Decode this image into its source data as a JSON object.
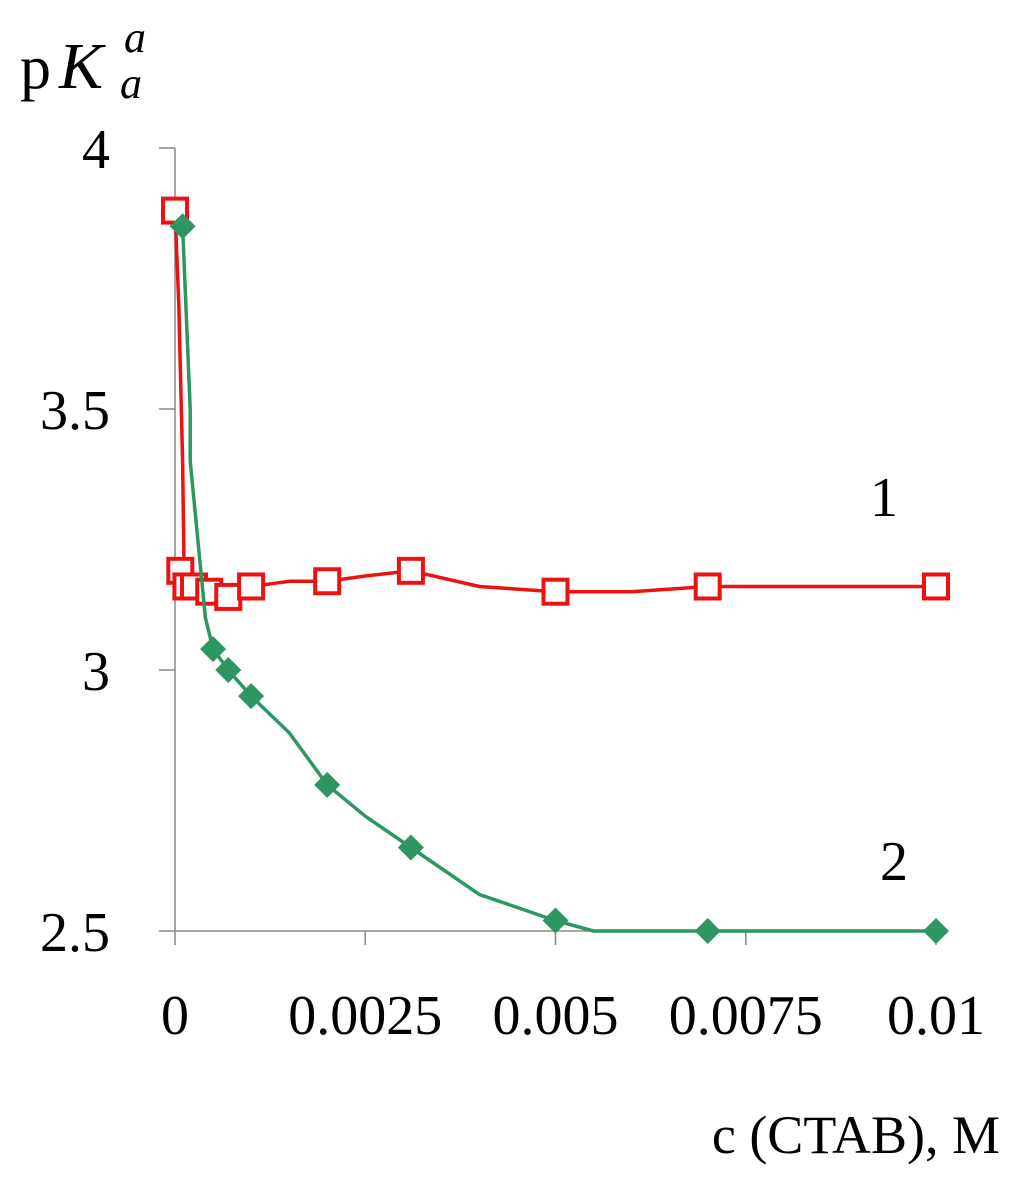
{
  "chart_data": {
    "type": "line",
    "ylabel": {
      "prefix": "p",
      "symbol": "K",
      "superscript": "a",
      "subscript": "a"
    },
    "xlabel": "c (CTAB), M",
    "xlim": [
      0,
      0.01
    ],
    "ylim": [
      2.5,
      4
    ],
    "x_ticks": [
      0,
      0.0025,
      0.005,
      0.0075,
      0.01
    ],
    "x_tick_labels": [
      "0",
      "0.0025",
      "0.005",
      "0.0075",
      "0.01"
    ],
    "y_ticks": [
      2.5,
      3,
      3.5,
      4
    ],
    "y_tick_labels": [
      "2.5",
      "3",
      "3.5",
      "4"
    ],
    "grid": false,
    "series": [
      {
        "label": "1",
        "color": "#ee1111",
        "marker": "open-square",
        "points": [
          [
            0.0,
            3.88
          ],
          [
            7e-05,
            3.19
          ],
          [
            0.00015,
            3.16
          ],
          [
            0.00025,
            3.16
          ],
          [
            0.00045,
            3.15
          ],
          [
            0.0007,
            3.14
          ],
          [
            0.001,
            3.16
          ],
          [
            0.002,
            3.17
          ],
          [
            0.0031,
            3.19
          ],
          [
            0.005,
            3.15
          ],
          [
            0.007,
            3.16
          ],
          [
            0.01,
            3.16
          ]
        ],
        "curve": [
          [
            0.0,
            3.88
          ],
          [
            5e-05,
            3.7
          ],
          [
            0.0001,
            3.4
          ],
          [
            0.00012,
            3.19
          ],
          [
            0.00015,
            3.16
          ],
          [
            0.00045,
            3.15
          ],
          [
            0.0007,
            3.14
          ],
          [
            0.001,
            3.16
          ],
          [
            0.0015,
            3.17
          ],
          [
            0.002,
            3.17
          ],
          [
            0.0025,
            3.18
          ],
          [
            0.0031,
            3.19
          ],
          [
            0.004,
            3.16
          ],
          [
            0.005,
            3.15
          ],
          [
            0.006,
            3.15
          ],
          [
            0.007,
            3.16
          ],
          [
            0.01,
            3.16
          ]
        ]
      },
      {
        "label": "2",
        "color": "#2e9660",
        "marker": "filled-diamond",
        "points": [
          [
            0.0001,
            3.85
          ],
          [
            0.0005,
            3.04
          ],
          [
            0.0007,
            3.0
          ],
          [
            0.001,
            2.95
          ],
          [
            0.002,
            2.78
          ],
          [
            0.0031,
            2.66
          ],
          [
            0.005,
            2.52
          ],
          [
            0.007,
            2.5
          ],
          [
            0.01,
            2.5
          ]
        ],
        "curve": [
          [
            0.0001,
            3.85
          ],
          [
            0.0002,
            3.5
          ],
          [
            0.0002,
            3.4
          ],
          [
            0.0003,
            3.25
          ],
          [
            0.0004,
            3.1
          ],
          [
            0.0005,
            3.04
          ],
          [
            0.0007,
            3.0
          ],
          [
            0.001,
            2.95
          ],
          [
            0.0015,
            2.88
          ],
          [
            0.002,
            2.78
          ],
          [
            0.0025,
            2.72
          ],
          [
            0.0031,
            2.66
          ],
          [
            0.004,
            2.57
          ],
          [
            0.005,
            2.52
          ],
          [
            0.0055,
            2.5
          ],
          [
            0.007,
            2.5
          ],
          [
            0.01,
            2.5
          ]
        ]
      }
    ]
  }
}
